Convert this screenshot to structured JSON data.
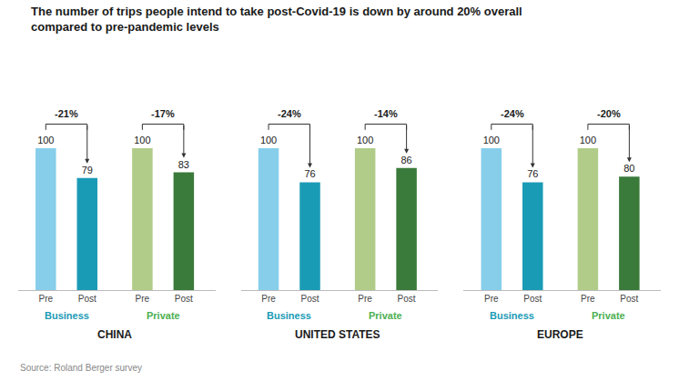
{
  "chart_data": [
    {
      "type": "bar",
      "title": "The number of trips people intend to take post-Covid-19 is down by around 20% overall",
      "subtitle": "compared to pre-pandemic levels",
      "annotations": [
        "Source: Roland Berger survey"
      ],
      "xlabel": "CHINA",
      "series": [
        {
          "name": "Business",
          "color": "#1A9BB5",
          "categories": [
            "Pre",
            "Post"
          ],
          "values": [
            100,
            79
          ],
          "colors": [
            "#87CEEB",
            "#1A9BB5"
          ],
          "annotations": [
            "-21%"
          ]
        },
        {
          "name": "Private",
          "color": "#4CAF50",
          "categories": [
            "Pre",
            "Post"
          ],
          "values": [
            100,
            83
          ],
          "colors": [
            "#B0CC88",
            "#3A7A3A"
          ],
          "annotations": [
            "-17%"
          ]
        }
      ],
      "ylim": [
        0,
        150
      ],
      "data_labels": true,
      "legend": false,
      "grid": false,
      "tick_labels": "x"
    },
    {
      "type": "bar",
      "xlabel": "UNITED STATES",
      "series": [
        {
          "name": "Business",
          "color": "#1A9BB5",
          "categories": [
            "Pre",
            "Post"
          ],
          "values": [
            100,
            76
          ],
          "colors": [
            "#87CEEB",
            "#1A9BB5"
          ],
          "annotations": [
            "-24%"
          ]
        },
        {
          "name": "Private",
          "color": "#4CAF50",
          "categories": [
            "Pre",
            "Post"
          ],
          "values": [
            100,
            86
          ],
          "colors": [
            "#B0CC88",
            "#3A7A3A"
          ],
          "annotations": [
            "-14%"
          ]
        }
      ],
      "ylim": [
        0,
        150
      ],
      "data_labels": true,
      "legend": false,
      "grid": false,
      "tick_labels": "x"
    },
    {
      "type": "bar",
      "xlabel": "EUROPE",
      "series": [
        {
          "name": "Business",
          "color": "#1A9BB5",
          "categories": [
            "Pre",
            "Post"
          ],
          "values": [
            100,
            76
          ],
          "colors": [
            "#87CEEB",
            "#1A9BB5"
          ],
          "annotations": [
            "-24%"
          ]
        },
        {
          "name": "Private",
          "color": "#4CAF50",
          "categories": [
            "Pre",
            "Post"
          ],
          "values": [
            100,
            80
          ],
          "colors": [
            "#B0CC88",
            "#3A7A3A"
          ],
          "annotations": [
            "-20%"
          ]
        }
      ],
      "ylim": [
        0,
        150
      ],
      "data_labels": true,
      "legend": false,
      "grid": false,
      "tick_labels": "x"
    }
  ]
}
